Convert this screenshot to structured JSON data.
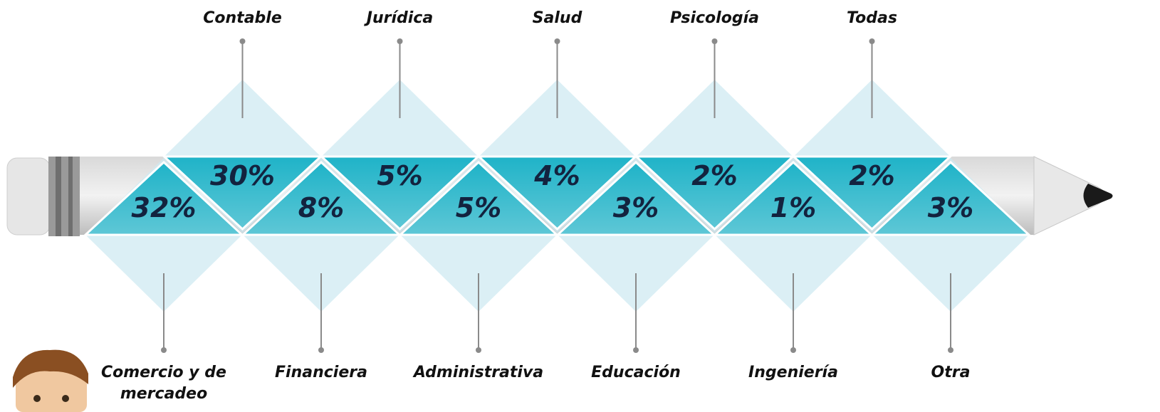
{
  "items": [
    {
      "label": [
        "Comercio y de",
        "mercadeo"
      ],
      "value": "32%"
    },
    {
      "label": [
        "Contable"
      ],
      "value": "30%"
    },
    {
      "label": [
        "Financiera"
      ],
      "value": "8%"
    },
    {
      "label": [
        "Jurídica"
      ],
      "value": "5%"
    },
    {
      "label": [
        "Administrativa"
      ],
      "value": "5%"
    },
    {
      "label": [
        "Salud"
      ],
      "value": "4%"
    },
    {
      "label": [
        "Educación"
      ],
      "value": "3%"
    },
    {
      "label": [
        "Psicología"
      ],
      "value": "2%"
    },
    {
      "label": [
        "Ingeniería"
      ],
      "value": "1%"
    },
    {
      "label": [
        "Todas"
      ],
      "value": "2%"
    },
    {
      "label": [
        "Otra"
      ],
      "value": "3%"
    }
  ]
}
